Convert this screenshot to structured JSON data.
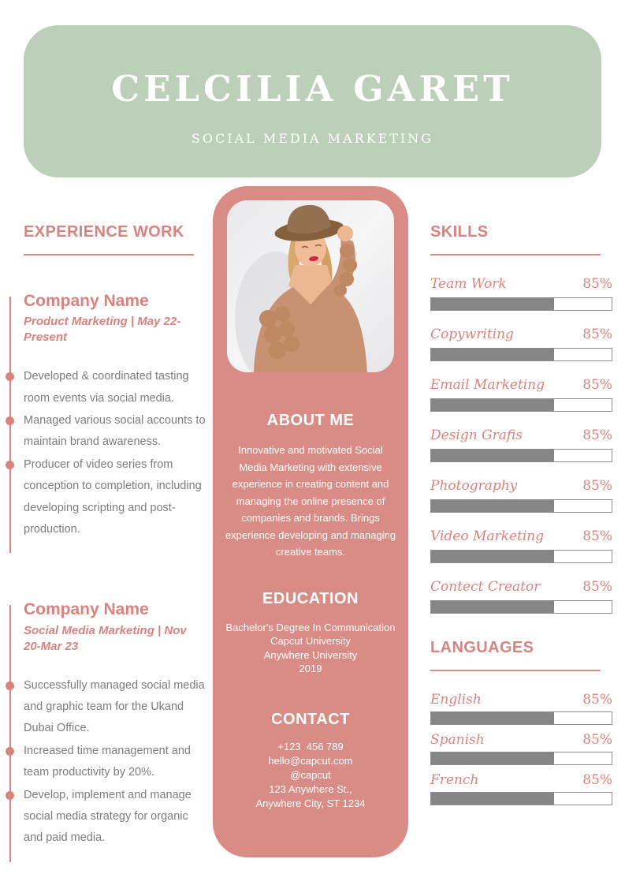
{
  "header": {
    "name": "CELCILIA GARET",
    "subtitle": "SOCIAL MEDIA MARKETING"
  },
  "experience": {
    "title": "EXPERIENCE WORK",
    "jobs": [
      {
        "company": "Company Name",
        "meta": "Product Marketing | May 22-Present",
        "bullets": [
          "Developed & coordinated tasting room events via social media.",
          "Managed various social accounts to maintain brand awareness.",
          "Producer of video series from conception to completion, including developing scripting and post-production."
        ]
      },
      {
        "company": "Company Name",
        "meta": "Social Media Marketing | Nov 20-Mar 23",
        "bullets": [
          "Successfully managed social media and graphic team for the Ukand Dubai Office.",
          "Increased time management and team productivity by 20%.",
          "Develop, implement and manage social media strategy for organic and paid media."
        ]
      }
    ]
  },
  "profile": {
    "photo_alt": "Portrait of woman in brown hat and tan knit cardigan",
    "about_title": "ABOUT ME",
    "about_text": "Innovative and motivated Social Media Marketing with extensive experience in creating content and managing the online presence of companies and brands. Brings experience developing and managing creative teams.",
    "education_title": "EDUCATION",
    "education_lines": "Bachelor's Degree In Communication\nCapcut University\nAnywhere University\n2019",
    "contact_title": "CONTACT",
    "contact_lines": "+123  456 789\nhello@capcut.com\n@capcut\n123 Anywhere St.,\nAnywhere City, ST 1234"
  },
  "skills": {
    "title": "SKILLS",
    "items": [
      {
        "label": "Team Work",
        "value": "85%",
        "fill_pct": 68
      },
      {
        "label": "Copywriting",
        "value": "85%",
        "fill_pct": 68
      },
      {
        "label": "Email Marketing",
        "value": "85%",
        "fill_pct": 68
      },
      {
        "label": "Design Grafis",
        "value": "85%",
        "fill_pct": 68
      },
      {
        "label": "Photography",
        "value": "85%",
        "fill_pct": 68
      },
      {
        "label": "Video Marketing",
        "value": "85%",
        "fill_pct": 68
      },
      {
        "label": "Contect Creator",
        "value": "85%",
        "fill_pct": 68
      }
    ]
  },
  "languages": {
    "title": "LANGUAGES",
    "items": [
      {
        "label": "English",
        "value": "85%",
        "fill_pct": 68
      },
      {
        "label": "Spanish",
        "value": "85%",
        "fill_pct": 68
      },
      {
        "label": "French",
        "value": "85%",
        "fill_pct": 68
      }
    ]
  },
  "colors": {
    "banner_green": "#bccfb8",
    "panel_pink": "#d98c85",
    "accent_rose": "#d9827e",
    "body_gray": "#7b7c80",
    "bar_fill_gray": "#858585",
    "white": "#ffffff"
  }
}
